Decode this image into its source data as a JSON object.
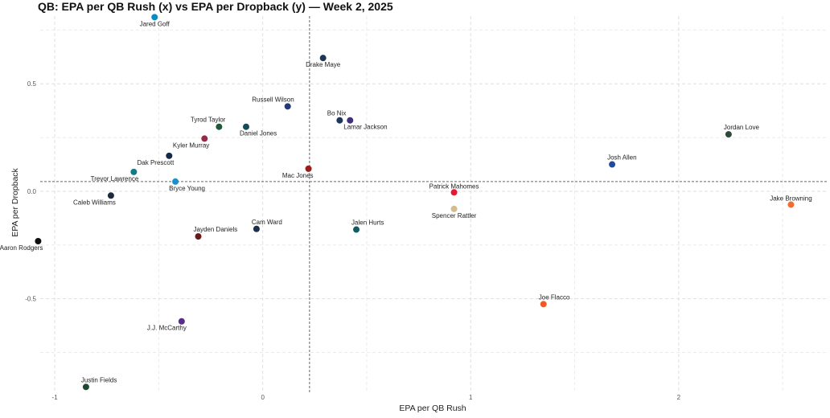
{
  "chart_data": {
    "type": "scatter",
    "title": "QB: EPA per QB Rush (x) vs EPA per Dropback (y) — Week 2, 2025",
    "xlabel": "EPA per QB Rush",
    "ylabel": "EPA per Dropback",
    "xlim": [
      -1.07,
      2.72
    ],
    "ylim": [
      -0.935,
      0.815
    ],
    "xticks": [
      -1,
      0,
      1,
      2
    ],
    "xtick_labels": [
      "-1",
      "0",
      "1",
      "2"
    ],
    "yticks": [
      -0.5,
      0.0,
      0.5
    ],
    "ytick_labels": [
      "-0.5",
      "0.0",
      "0.5"
    ],
    "grid": true,
    "ref_lines": {
      "x_mean": 0.225,
      "y_mean": 0.045
    },
    "points": [
      {
        "name": "Jared Goff",
        "x": -0.52,
        "y": 0.81,
        "color": "#0b88c6",
        "label_pos": "below"
      },
      {
        "name": "Drake Maye",
        "x": 0.29,
        "y": 0.62,
        "color": "#1d3557",
        "label_pos": "below"
      },
      {
        "name": "Russell Wilson",
        "x": 0.12,
        "y": 0.395,
        "color": "#233a77",
        "label_pos": "above-left"
      },
      {
        "name": "Bo Nix",
        "x": 0.37,
        "y": 0.33,
        "color": "#1f3559",
        "label_pos": "above-left"
      },
      {
        "name": "Lamar Jackson",
        "x": 0.42,
        "y": 0.33,
        "color": "#3f2f7a",
        "label_pos": "below-right"
      },
      {
        "name": "Tyrod Taylor",
        "x": -0.21,
        "y": 0.3,
        "color": "#1e5a3a",
        "label_pos": "above-left"
      },
      {
        "name": "Daniel Jones",
        "x": -0.08,
        "y": 0.3,
        "color": "#174a59",
        "label_pos": "below-right"
      },
      {
        "name": "Kyler Murray",
        "x": -0.28,
        "y": 0.245,
        "color": "#9b2a4a",
        "label_pos": "below-left"
      },
      {
        "name": "Jordan Love",
        "x": 2.24,
        "y": 0.265,
        "color": "#2d4a3a",
        "label_pos": "above-right"
      },
      {
        "name": "Dak Prescott",
        "x": -0.45,
        "y": 0.165,
        "color": "#152a4a",
        "label_pos": "below-left"
      },
      {
        "name": "Josh Allen",
        "x": 1.68,
        "y": 0.125,
        "color": "#1f4aa1",
        "label_pos": "above-right"
      },
      {
        "name": "Mac Jones",
        "x": 0.22,
        "y": 0.105,
        "color": "#9b1c1c",
        "label_pos": "below-left"
      },
      {
        "name": "Trevor Lawrence",
        "x": -0.62,
        "y": 0.09,
        "color": "#127b85",
        "label_pos": "below-left"
      },
      {
        "name": "Bryce Young",
        "x": -0.42,
        "y": 0.045,
        "color": "#1a8fcf",
        "label_pos": "below-right"
      },
      {
        "name": "Caleb Williams",
        "x": -0.73,
        "y": -0.02,
        "color": "#1e2b3a",
        "label_pos": "below-left"
      },
      {
        "name": "Patrick Mahomes",
        "x": 0.92,
        "y": -0.005,
        "color": "#e31837",
        "label_pos": "above"
      },
      {
        "name": "Jake Browning",
        "x": 2.54,
        "y": -0.062,
        "color": "#f26c32",
        "label_pos": "above"
      },
      {
        "name": "Spencer Rattler",
        "x": 0.92,
        "y": -0.082,
        "color": "#d3bc8d",
        "label_pos": "below"
      },
      {
        "name": "Cam Ward",
        "x": -0.03,
        "y": -0.175,
        "color": "#1b2f4f",
        "label_pos": "above-right"
      },
      {
        "name": "Jalen Hurts",
        "x": 0.45,
        "y": -0.178,
        "color": "#145a62",
        "label_pos": "above-right"
      },
      {
        "name": "Jayden Daniels",
        "x": -0.31,
        "y": -0.21,
        "color": "#6a1a1a",
        "label_pos": "above-right"
      },
      {
        "name": "Aaron Rodgers",
        "x": -1.08,
        "y": -0.232,
        "color": "#101010",
        "label_pos": "below-left"
      },
      {
        "name": "Joe Flacco",
        "x": 1.35,
        "y": -0.525,
        "color": "#f15a22",
        "label_pos": "above-right"
      },
      {
        "name": "J.J. McCarthy",
        "x": -0.39,
        "y": -0.605,
        "color": "#5a2d86",
        "label_pos": "below-left"
      },
      {
        "name": "Justin Fields",
        "x": -0.85,
        "y": -0.91,
        "color": "#1e4a2f",
        "label_pos": "above-right"
      }
    ]
  }
}
